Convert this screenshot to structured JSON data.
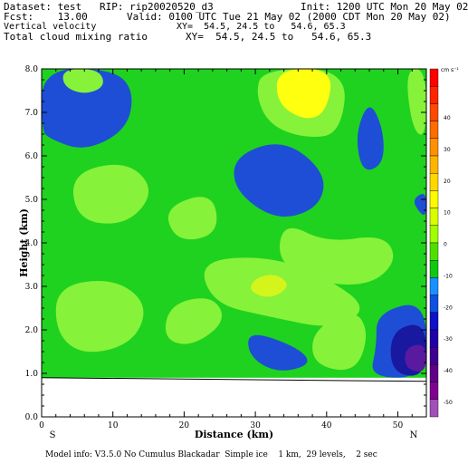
{
  "header": {
    "dataset": "Dataset: test   RIP: rip20020520_d3",
    "init": "Init: 1200 UTC Mon 20 May 02",
    "fcst": "Fcst:    13.00",
    "valid": "Valid: 0100 UTC Tue 21 May 02 (2000 CDT Mon 20 May 02)",
    "field1": "Vertical velocity",
    "field1_xy": "XY=  54.5, 24.5 to   54.6, 65.3",
    "field2": "Total cloud mixing ratio",
    "field2_xy": "XY=  54.5, 24.5 to   54.6, 65.3"
  },
  "footer": "Model info: V3.5.0 No Cumulus Blackadar  Simple ice    1 km,  29 levels,    2 sec",
  "colors": {
    "green": "#1fd21f",
    "light_green": "#86f23a",
    "yellow_green": "#d4f51b",
    "yellow": "#ffff10",
    "blue": "#1e4ed6",
    "dark_blue": "#1818a0",
    "purple": "#5a1aa0"
  },
  "chart_data": {
    "type": "heatmap",
    "xlabel": "Distance (km)",
    "ylabel": "Height (km)",
    "xlim": [
      0,
      54
    ],
    "ylim": [
      0.0,
      8.0
    ],
    "x_ticks": [
      "0",
      "10",
      "20",
      "30",
      "40",
      "50"
    ],
    "y_ticks": [
      "0.0",
      "1.0",
      "2.0",
      "3.0",
      "4.0",
      "5.0",
      "6.0",
      "7.0",
      "8.0"
    ],
    "x_end_labels": {
      "left": "S",
      "right": "N"
    },
    "terrain_height_km": 0.9,
    "colorbar": {
      "unit": "cm s⁻¹",
      "labels": [
        "40",
        "30",
        "20",
        "10",
        "0",
        "-10",
        "-20",
        "-30",
        "-40",
        "-50"
      ],
      "colors": [
        "#ff0000",
        "#ff2400",
        "#ff4800",
        "#ff6c00",
        "#ff9000",
        "#ffb400",
        "#ffd800",
        "#fffa00",
        "#d8ff00",
        "#a0ff00",
        "#50e000",
        "#10c810",
        "#1890ff",
        "#1050e0",
        "#1010c8",
        "#2000a8",
        "#400090",
        "#600088",
        "#800090",
        "#a050b8"
      ]
    },
    "regions": [
      {
        "level": "blue",
        "shape": [
          [
            0,
            8
          ],
          [
            10,
            8
          ],
          [
            13,
            7.5
          ],
          [
            12,
            6.6
          ],
          [
            6,
            6.1
          ],
          [
            1,
            6.4
          ],
          [
            0,
            6.6
          ]
        ]
      },
      {
        "level": "light_green",
        "shape": [
          [
            3,
            8
          ],
          [
            8,
            8
          ],
          [
            9,
            7.6
          ],
          [
            6,
            7.4
          ],
          [
            3,
            7.6
          ]
        ]
      },
      {
        "level": "light_green",
        "shape": [
          [
            31,
            8
          ],
          [
            43,
            8
          ],
          [
            42,
            6.5
          ],
          [
            37,
            6.4
          ],
          [
            32,
            6.7
          ],
          [
            30,
            7.4
          ]
        ]
      },
      {
        "level": "yellow",
        "shape": [
          [
            33,
            8
          ],
          [
            41,
            8
          ],
          [
            40,
            7.0
          ],
          [
            37,
            6.8
          ],
          [
            33,
            7.2
          ]
        ]
      },
      {
        "level": "light_green",
        "shape": [
          [
            51,
            8
          ],
          [
            54,
            8
          ],
          [
            54,
            6.4
          ],
          [
            52,
            6.6
          ]
        ]
      },
      {
        "level": "blue",
        "shape": [
          [
            44,
            6.5
          ],
          [
            46,
            7.3
          ],
          [
            48,
            6.6
          ],
          [
            48,
            5.8
          ],
          [
            45,
            5.6
          ]
        ]
      },
      {
        "level": "blue",
        "shape": [
          [
            27,
            6.0
          ],
          [
            34,
            6.4
          ],
          [
            40,
            5.6
          ],
          [
            39,
            4.8
          ],
          [
            33,
            4.5
          ],
          [
            27,
            5.2
          ]
        ]
      },
      {
        "level": "blue",
        "shape": [
          [
            52,
            5.0
          ],
          [
            54,
            5.2
          ],
          [
            54,
            4.6
          ],
          [
            53,
            4.7
          ]
        ]
      },
      {
        "level": "light_green",
        "shape": [
          [
            4,
            5.6
          ],
          [
            12,
            5.9
          ],
          [
            16,
            5.2
          ],
          [
            12,
            4.4
          ],
          [
            5,
            4.5
          ]
        ]
      },
      {
        "level": "light_green",
        "shape": [
          [
            17,
            4.8
          ],
          [
            24,
            5.2
          ],
          [
            25,
            4.2
          ],
          [
            19,
            4.0
          ]
        ]
      },
      {
        "level": "light_green",
        "shape": [
          [
            34,
            4.5
          ],
          [
            40,
            4.0
          ],
          [
            48,
            4.2
          ],
          [
            50,
            3.6
          ],
          [
            46,
            3.0
          ],
          [
            38,
            3.1
          ],
          [
            33,
            3.6
          ]
        ]
      },
      {
        "level": "light_green",
        "shape": [
          [
            22,
            3.6
          ],
          [
            32,
            3.7
          ],
          [
            40,
            3.2
          ],
          [
            46,
            2.5
          ],
          [
            41,
            2.0
          ],
          [
            32,
            2.3
          ],
          [
            24,
            2.6
          ]
        ]
      },
      {
        "level": "yellow_green",
        "shape": [
          [
            30,
            3.2
          ],
          [
            33,
            3.3
          ],
          [
            35,
            3.0
          ],
          [
            32,
            2.7
          ],
          [
            29,
            2.9
          ]
        ]
      },
      {
        "level": "light_green",
        "shape": [
          [
            2,
            3.0
          ],
          [
            10,
            3.2
          ],
          [
            15,
            2.6
          ],
          [
            13,
            1.7
          ],
          [
            6,
            1.4
          ],
          [
            2,
            1.9
          ]
        ]
      },
      {
        "level": "light_green",
        "shape": [
          [
            18,
            2.6
          ],
          [
            24,
            2.8
          ],
          [
            26,
            2.2
          ],
          [
            21,
            1.6
          ],
          [
            17,
            1.8
          ]
        ]
      },
      {
        "level": "light_green",
        "shape": [
          [
            38,
            2.0
          ],
          [
            44,
            2.5
          ],
          [
            46,
            1.9
          ],
          [
            44,
            1.0
          ],
          [
            38,
            1.2
          ]
        ]
      },
      {
        "level": "blue",
        "shape": [
          [
            29,
            2.0
          ],
          [
            36,
            1.6
          ],
          [
            38,
            1.2
          ],
          [
            33,
            1.0
          ],
          [
            29,
            1.4
          ]
        ]
      },
      {
        "level": "blue",
        "shape": [
          [
            47,
            2.4
          ],
          [
            54,
            2.7
          ],
          [
            54,
            0.9
          ],
          [
            46,
            0.9
          ],
          [
            47,
            1.6
          ]
        ]
      },
      {
        "level": "dark_blue",
        "shape": [
          [
            49,
            2.0
          ],
          [
            54,
            2.2
          ],
          [
            54,
            0.9
          ],
          [
            49,
            1.0
          ]
        ]
      },
      {
        "level": "purple",
        "shape": [
          [
            51,
            1.6
          ],
          [
            54,
            1.7
          ],
          [
            54,
            1.0
          ],
          [
            51,
            1.1
          ]
        ]
      }
    ]
  }
}
